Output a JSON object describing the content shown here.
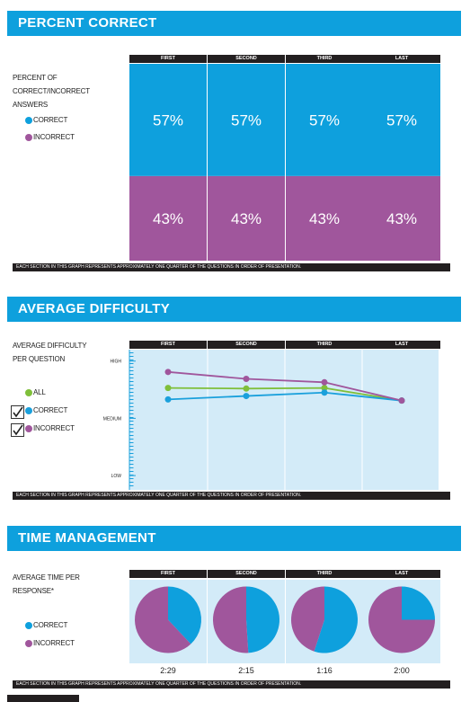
{
  "chart_data": [
    {
      "type": "bar",
      "stacked": true,
      "title": "PERCENT CORRECT",
      "subtitle": "PERCENT OF CORRECT/INCORRECT ANSWERS",
      "categories": [
        "FIRST",
        "SECOND",
        "THIRD",
        "LAST"
      ],
      "series": [
        {
          "name": "CORRECT",
          "color": "#0ea0dd",
          "values": [
            57,
            57,
            57,
            57
          ],
          "value_labels": [
            "57%",
            "57%",
            "57%",
            "57%"
          ]
        },
        {
          "name": "INCORRECT",
          "color": "#a0569c",
          "values": [
            43,
            43,
            43,
            43
          ],
          "value_labels": [
            "43%",
            "43%",
            "43%",
            "43%"
          ]
        }
      ],
      "ylim": [
        0,
        100
      ],
      "note": "EACH SECTION IN THIS GRAPH REPRESENTS APPROXIMATELY ONE QUARTER OF THE QUESTIONS IN ORDER OF PRESENTATION."
    },
    {
      "type": "line",
      "title": "AVERAGE DIFFICULTY",
      "subtitle": "AVERAGE DIFFICULTY PER QUESTION",
      "categories": [
        "FIRST",
        "SECOND",
        "THIRD",
        "LAST"
      ],
      "series": [
        {
          "name": "ALL",
          "color": "#7fbf3a",
          "values": [
            2.53,
            2.52,
            2.53,
            2.31
          ],
          "checkbox": false
        },
        {
          "name": "CORRECT",
          "color": "#1aa0dc",
          "values": [
            2.33,
            2.39,
            2.45,
            2.31
          ],
          "checkbox": true
        },
        {
          "name": "INCORRECT",
          "color": "#a0569c",
          "values": [
            2.81,
            2.69,
            2.63,
            2.31
          ],
          "checkbox": true
        }
      ],
      "ylim": [
        0.75,
        3.2
      ],
      "yticks": [
        {
          "value": 1,
          "label": "LOW"
        },
        {
          "value": 2,
          "label": "MEDIUM"
        },
        {
          "value": 3,
          "label": "HIGH"
        }
      ],
      "note": "EACH SECTION IN THIS GRAPH REPRESENTS APPROXIMATELY ONE QUARTER OF THE QUESTIONS IN ORDER OF PRESENTATION."
    },
    {
      "type": "pie",
      "title": "TIME MANAGEMENT",
      "subtitle": "AVERAGE TIME PER RESPONSE*",
      "categories": [
        "FIRST",
        "SECOND",
        "THIRD",
        "LAST"
      ],
      "series": [
        {
          "name": "CORRECT",
          "color": "#0ea0dd",
          "values": [
            38,
            49,
            55,
            25
          ]
        },
        {
          "name": "INCORRECT",
          "color": "#a0569c",
          "values": [
            62,
            51,
            45,
            75
          ]
        }
      ],
      "times": [
        "2:29",
        "2:15",
        "1:16",
        "2:00"
      ],
      "note": "EACH SECTION IN THIS GRAPH REPRESENTS APPROXIMATELY ONE QUARTER OF THE QUESTIONS IN ORDER OF PRESENTATION."
    }
  ]
}
